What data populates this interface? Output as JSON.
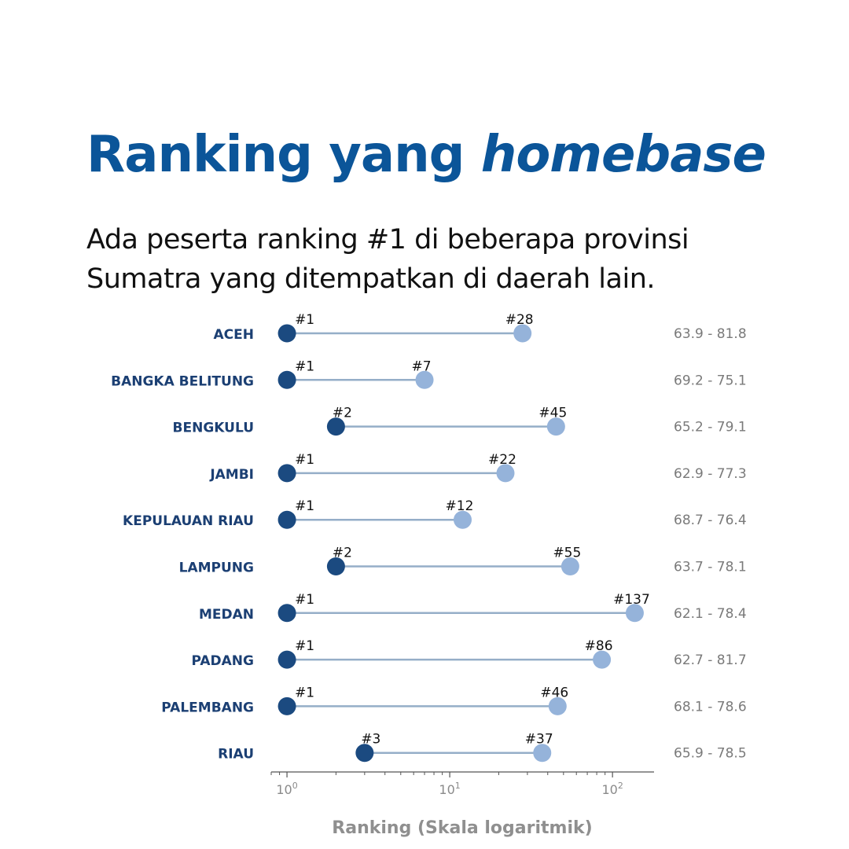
{
  "header": {
    "title_main": "Ranking yang ",
    "title_italic": "homebase",
    "subtitle_line1": "Ada peserta ranking #1 di beberapa provinsi",
    "subtitle_line2": "Sumatra yang ditempatkan di daerah lain."
  },
  "chart_data": {
    "type": "dumbbell",
    "xlabel": "Ranking (Skala logaritmik)",
    "xscale": "log",
    "xlim": [
      0.8,
      180
    ],
    "xticks": [
      {
        "value": 1,
        "label": "10",
        "exp": "0"
      },
      {
        "value": 10,
        "label": "10",
        "exp": "1"
      },
      {
        "value": 100,
        "label": "10",
        "exp": "2"
      }
    ],
    "colors": {
      "min_dot": "#1b4a80",
      "max_dot": "#95b3da",
      "connector": "#95aec8",
      "category_label": "#1b3f73"
    },
    "rows": [
      {
        "category": "ACEH",
        "min": 1,
        "max": 28,
        "min_label": "#1",
        "max_label": "#28",
        "range": "63.9 - 81.8"
      },
      {
        "category": "BANGKA BELITUNG",
        "min": 1,
        "max": 7,
        "min_label": "#1",
        "max_label": "#7",
        "range": "69.2 - 75.1"
      },
      {
        "category": "BENGKULU",
        "min": 2,
        "max": 45,
        "min_label": "#2",
        "max_label": "#45",
        "range": "65.2 - 79.1"
      },
      {
        "category": "JAMBI",
        "min": 1,
        "max": 22,
        "min_label": "#1",
        "max_label": "#22",
        "range": "62.9 - 77.3"
      },
      {
        "category": "KEPULAUAN RIAU",
        "min": 1,
        "max": 12,
        "min_label": "#1",
        "max_label": "#12",
        "range": "68.7 - 76.4"
      },
      {
        "category": "LAMPUNG",
        "min": 2,
        "max": 55,
        "min_label": "#2",
        "max_label": "#55",
        "range": "63.7 - 78.1"
      },
      {
        "category": "MEDAN",
        "min": 1,
        "max": 137,
        "min_label": "#1",
        "max_label": "#137",
        "range": "62.1 - 78.4"
      },
      {
        "category": "PADANG",
        "min": 1,
        "max": 86,
        "min_label": "#1",
        "max_label": "#86",
        "range": "62.7 - 81.7"
      },
      {
        "category": "PALEMBANG",
        "min": 1,
        "max": 46,
        "min_label": "#1",
        "max_label": "#46",
        "range": "68.1 - 78.6"
      },
      {
        "category": "RIAU",
        "min": 3,
        "max": 37,
        "min_label": "#3",
        "max_label": "#37",
        "range": "65.9 - 78.5"
      }
    ]
  }
}
